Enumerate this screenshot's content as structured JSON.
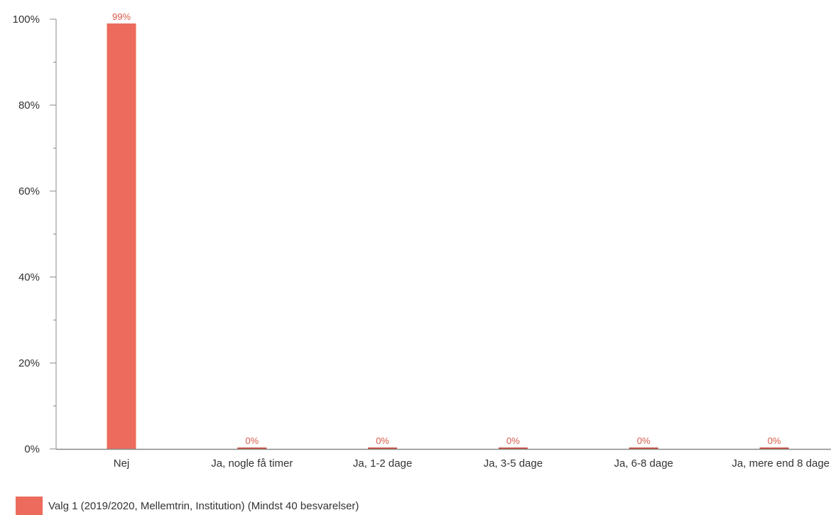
{
  "chart_data": {
    "type": "bar",
    "categories": [
      "Nej",
      "Ja, nogle få timer",
      "Ja, 1-2 dage",
      "Ja, 3-5 dage",
      "Ja, 6-8 dage",
      "Ja, mere end 8 dage"
    ],
    "series": [
      {
        "name": "Valg 1 (2019/2020, Mellemtrin, Institution) (Mindst 40 besvarelser)",
        "values": [
          99,
          0,
          0,
          0,
          0,
          0
        ],
        "labels": [
          "99%",
          "0%",
          "0%",
          "0%",
          "0%",
          "0%"
        ]
      }
    ],
    "yticks": [
      0,
      20,
      40,
      60,
      80,
      100
    ],
    "ytick_labels": [
      "0%",
      "20%",
      "40%",
      "60%",
      "80%",
      "100%"
    ],
    "ylim": [
      0,
      100
    ],
    "title": "",
    "xlabel": "",
    "ylabel": "",
    "legend_position": "bottom-left",
    "grid": false,
    "colors": {
      "bar": "#ec6b5c",
      "bar_zero": "#c94a3c",
      "label": "#d75a4a",
      "axis": "#888888",
      "text": "#333333"
    }
  }
}
